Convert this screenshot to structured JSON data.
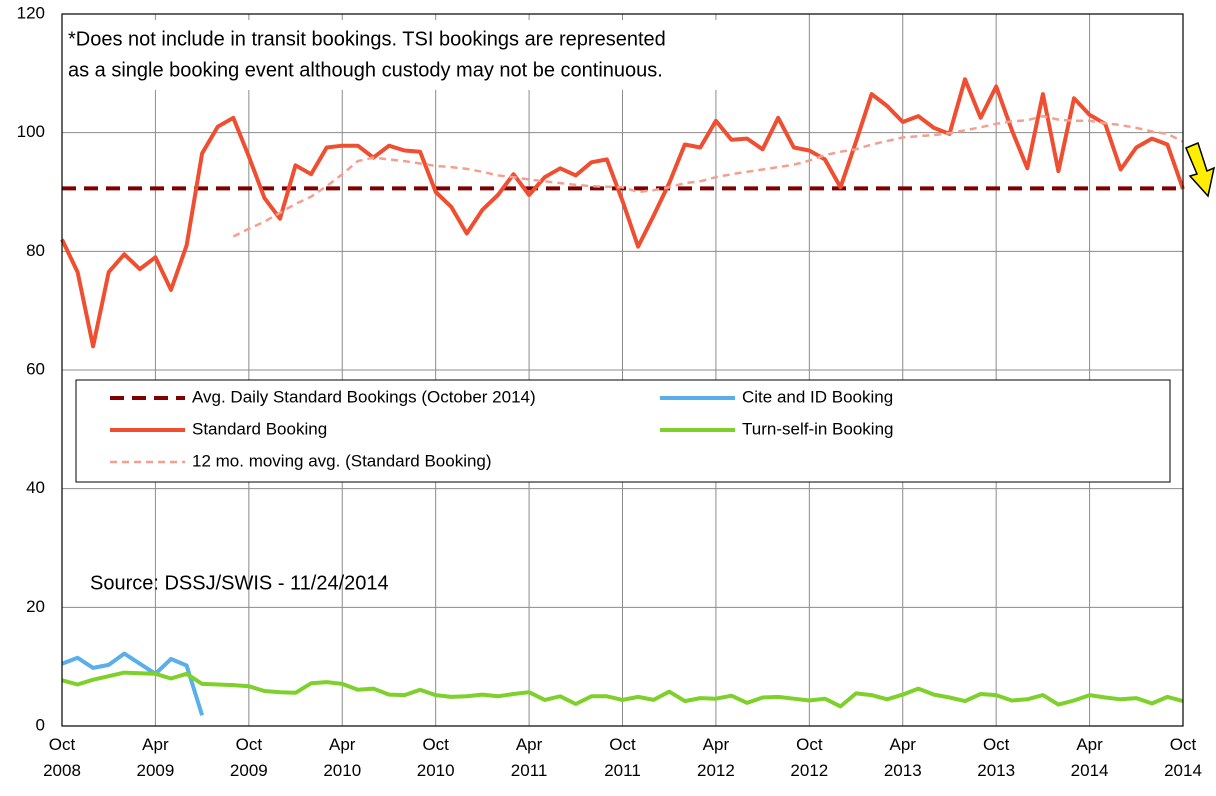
{
  "chart_data": {
    "type": "line",
    "annotations": [
      "*Does not include in transit bookings. TSI bookings are represented",
      "as a single booking event although custody may not be continuous."
    ],
    "source": "Source: DSSJ/SWIS - 11/24/2014",
    "categories": [
      "Oct 2008",
      null,
      null,
      null,
      null,
      null,
      "Apr 2009",
      null,
      null,
      null,
      null,
      null,
      "Oct 2009",
      null,
      null,
      null,
      null,
      null,
      "Apr 2010",
      null,
      null,
      null,
      null,
      null,
      "Oct 2010",
      null,
      null,
      null,
      null,
      null,
      "Apr 2011",
      null,
      null,
      null,
      null,
      null,
      "Oct 2011",
      null,
      null,
      null,
      null,
      null,
      "Apr 2012",
      null,
      null,
      null,
      null,
      null,
      "Oct 2012",
      null,
      null,
      null,
      null,
      null,
      "Apr 2013",
      null,
      null,
      null,
      null,
      null,
      "Oct 2013",
      null,
      null,
      null,
      null,
      null,
      "Apr 2014",
      null,
      null,
      null,
      null,
      null,
      "Oct 2014"
    ],
    "ylim": [
      0,
      120
    ],
    "yticks": [
      0,
      20,
      40,
      60,
      80,
      100,
      120
    ],
    "grid": true,
    "series": [
      {
        "name": "Avg. Daily Standard Bookings (October 2014)",
        "color": "#7f0000",
        "dash": "14 8",
        "width": 4,
        "values": [
          90.6,
          90.6,
          90.6,
          90.6,
          90.6,
          90.6,
          90.6,
          90.6,
          90.6,
          90.6,
          90.6,
          90.6,
          90.6,
          90.6,
          90.6,
          90.6,
          90.6,
          90.6,
          90.6,
          90.6,
          90.6,
          90.6,
          90.6,
          90.6,
          90.6,
          90.6,
          90.6,
          90.6,
          90.6,
          90.6,
          90.6,
          90.6,
          90.6,
          90.6,
          90.6,
          90.6,
          90.6,
          90.6,
          90.6,
          90.6,
          90.6,
          90.6,
          90.6,
          90.6,
          90.6,
          90.6,
          90.6,
          90.6,
          90.6,
          90.6,
          90.6,
          90.6,
          90.6,
          90.6,
          90.6,
          90.6,
          90.6,
          90.6,
          90.6,
          90.6,
          90.6,
          90.6,
          90.6,
          90.6,
          90.6,
          90.6,
          90.6,
          90.6,
          90.6,
          90.6,
          90.6,
          90.6,
          90.6
        ]
      },
      {
        "name": "Cite and ID Booking",
        "color": "#5aaeea",
        "width": 4,
        "values": [
          10.5,
          11.5,
          9.8,
          10.3,
          12.2,
          10.5,
          8.8,
          11.3,
          10.2,
          1.8,
          null,
          null,
          null,
          null,
          null,
          null,
          null,
          null,
          null,
          null,
          null,
          null,
          null,
          null,
          null,
          null,
          null,
          null,
          null,
          null,
          null,
          null,
          null,
          null,
          null,
          null,
          null,
          null,
          null,
          null,
          null,
          null,
          null,
          null,
          null,
          null,
          null,
          null,
          null,
          null,
          null,
          null,
          null,
          null,
          null,
          null,
          null,
          null,
          null,
          null,
          null,
          null,
          null,
          null,
          null,
          null,
          null,
          null,
          null,
          null,
          null,
          null,
          null
        ]
      },
      {
        "name": "Standard Booking",
        "color": "#f04e30",
        "width": 4,
        "values": [
          82,
          76.5,
          64,
          76.5,
          79.5,
          77,
          79,
          73.5,
          81,
          96.5,
          101,
          102.5,
          96,
          89,
          85.5,
          94.5,
          93,
          97.5,
          97.8,
          97.8,
          95.8,
          97.8,
          97,
          96.8,
          90,
          87.5,
          83,
          87,
          89.5,
          93,
          89.5,
          92.5,
          94,
          92.8,
          95,
          95.5,
          88.5,
          80.8,
          86,
          91.5,
          98,
          97.5,
          102,
          98.8,
          99,
          97.2,
          102.5,
          97.5,
          97,
          95.5,
          90.8,
          98.5,
          106.5,
          104.5,
          101.8,
          102.8,
          100.8,
          99.8,
          109,
          102.5,
          107.8,
          100.5,
          94,
          106.5,
          93.5,
          105.8,
          103,
          101.5,
          93.8,
          97.5,
          99,
          98,
          90.5
        ]
      },
      {
        "name": "Turn-self-in Booking",
        "color": "#7ed02a",
        "width": 4,
        "values": [
          7.7,
          7,
          7.8,
          8.4,
          9,
          8.9,
          8.8,
          8,
          8.8,
          7.1,
          7,
          6.9,
          6.7,
          5.9,
          5.7,
          5.6,
          7.2,
          7.4,
          7.1,
          6.1,
          6.3,
          5.3,
          5.2,
          6.1,
          5.2,
          4.9,
          5,
          5.3,
          5,
          5.4,
          5.7,
          4.4,
          5,
          3.7,
          5,
          5,
          4.4,
          4.9,
          4.4,
          5.8,
          4.2,
          4.7,
          4.6,
          5.1,
          3.9,
          4.8,
          4.9,
          4.6,
          4.3,
          4.6,
          3.3,
          5.5,
          5.2,
          4.5,
          5.3,
          6.3,
          5.3,
          4.8,
          4.2,
          5.4,
          5.2,
          4.3,
          4.5,
          5.2,
          3.6,
          4.3,
          5.2,
          4.8,
          4.5,
          4.7,
          3.8,
          4.9,
          4.2
        ]
      },
      {
        "name": "12 mo. moving avg. (Standard Booking)",
        "color": "#f4a090",
        "dash": "7 5",
        "width": 2.5,
        "values": [
          null,
          null,
          null,
          null,
          null,
          null,
          null,
          null,
          null,
          null,
          null,
          82.5,
          83.8,
          85,
          86.5,
          88,
          89.2,
          91,
          93,
          95.2,
          95.8,
          95.5,
          95.2,
          94.8,
          94.4,
          94.2,
          93.9,
          93.4,
          92.8,
          92.5,
          92.1,
          91.8,
          91.5,
          91.2,
          91,
          90.9,
          90.8,
          90,
          90.3,
          90.8,
          91.5,
          91.8,
          92.5,
          93,
          93.4,
          93.8,
          94.2,
          94.6,
          95.3,
          96.2,
          96.8,
          97.2,
          98,
          98.6,
          99.2,
          99.4,
          99.6,
          99.9,
          100.4,
          100.9,
          101.5,
          101.9,
          102.1,
          102.8,
          102.2,
          102,
          102,
          101.6,
          101.3,
          100.8,
          100.2,
          99.8,
          98.5
        ]
      }
    ]
  }
}
